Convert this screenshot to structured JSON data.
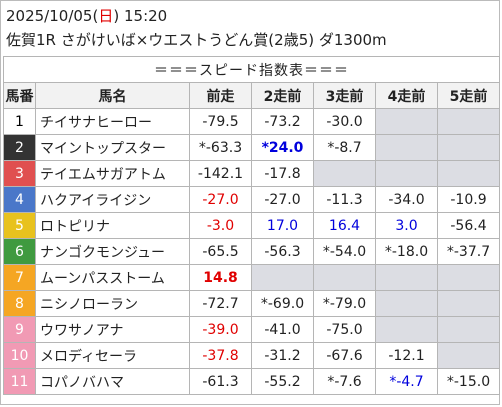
{
  "header": {
    "date": "2025/10/05",
    "dow_open": "(",
    "dow": "日",
    "dow_close": ")",
    "time": "15:20",
    "race_line": "佐賀1R さがけいば×ウエストうどん賞(2歳5) ダ1300m"
  },
  "table": {
    "title": "＝＝＝スピード指数表＝＝＝",
    "columns": [
      "馬番",
      "馬名",
      "前走",
      "2走前",
      "3走前",
      "4走前",
      "5走前"
    ],
    "rows": [
      {
        "num": "1",
        "num_bg": "#ffffff",
        "num_fg": "#000000",
        "name": "チイサナヒーロー",
        "vals": [
          {
            "t": "-79.5",
            "c": "normal"
          },
          {
            "t": "-73.2",
            "c": "normal"
          },
          {
            "t": "-30.0",
            "c": "normal"
          },
          {
            "t": "",
            "c": "empty"
          },
          {
            "t": "",
            "c": "empty"
          }
        ]
      },
      {
        "num": "2",
        "num_bg": "#333333",
        "num_fg": "#ffffff",
        "name": "マイントップスター",
        "vals": [
          {
            "t": "*-63.3",
            "c": "normal"
          },
          {
            "t": "*24.0",
            "c": "blue-bold"
          },
          {
            "t": "*-8.7",
            "c": "normal"
          },
          {
            "t": "",
            "c": "empty"
          },
          {
            "t": "",
            "c": "empty"
          }
        ]
      },
      {
        "num": "3",
        "num_bg": "#e05050",
        "num_fg": "#ffffff",
        "name": "テイエムサガアトム",
        "vals": [
          {
            "t": "-142.1",
            "c": "normal"
          },
          {
            "t": "-17.8",
            "c": "normal"
          },
          {
            "t": "",
            "c": "empty"
          },
          {
            "t": "",
            "c": "empty"
          },
          {
            "t": "",
            "c": "empty"
          }
        ]
      },
      {
        "num": "4",
        "num_bg": "#4a77c9",
        "num_fg": "#ffffff",
        "name": "ハクアイライジン",
        "vals": [
          {
            "t": "-27.0",
            "c": "red"
          },
          {
            "t": "-27.0",
            "c": "normal"
          },
          {
            "t": "-11.3",
            "c": "normal"
          },
          {
            "t": "-34.0",
            "c": "normal"
          },
          {
            "t": "-10.9",
            "c": "normal"
          }
        ]
      },
      {
        "num": "5",
        "num_bg": "#e8c21e",
        "num_fg": "#ffffff",
        "name": "ロトピリナ",
        "vals": [
          {
            "t": "-3.0",
            "c": "red"
          },
          {
            "t": "17.0",
            "c": "blue"
          },
          {
            "t": "16.4",
            "c": "blue"
          },
          {
            "t": "3.0",
            "c": "blue"
          },
          {
            "t": "-56.4",
            "c": "normal"
          }
        ]
      },
      {
        "num": "6",
        "num_bg": "#3f9a3f",
        "num_fg": "#ffffff",
        "name": "ナンゴクモンジュー",
        "vals": [
          {
            "t": "-65.5",
            "c": "normal"
          },
          {
            "t": "-56.3",
            "c": "normal"
          },
          {
            "t": "*-54.0",
            "c": "normal"
          },
          {
            "t": "*-18.0",
            "c": "normal"
          },
          {
            "t": "*-37.7",
            "c": "normal"
          }
        ]
      },
      {
        "num": "7",
        "num_bg": "#f5a623",
        "num_fg": "#ffffff",
        "name": "ムーンパスストーム",
        "vals": [
          {
            "t": "14.8",
            "c": "red-bold"
          },
          {
            "t": "",
            "c": "empty"
          },
          {
            "t": "",
            "c": "empty"
          },
          {
            "t": "",
            "c": "empty"
          },
          {
            "t": "",
            "c": "empty"
          }
        ]
      },
      {
        "num": "8",
        "num_bg": "#f5a623",
        "num_fg": "#ffffff",
        "name": "ニシノローラン",
        "vals": [
          {
            "t": "-72.7",
            "c": "normal"
          },
          {
            "t": "*-69.0",
            "c": "normal"
          },
          {
            "t": "*-79.0",
            "c": "normal"
          },
          {
            "t": "",
            "c": "empty"
          },
          {
            "t": "",
            "c": "empty"
          }
        ]
      },
      {
        "num": "9",
        "num_bg": "#f19ab4",
        "num_fg": "#ffffff",
        "name": "ウワサノアナ",
        "vals": [
          {
            "t": "-39.0",
            "c": "red"
          },
          {
            "t": "-41.0",
            "c": "normal"
          },
          {
            "t": "-75.0",
            "c": "normal"
          },
          {
            "t": "",
            "c": "empty"
          },
          {
            "t": "",
            "c": "empty"
          }
        ]
      },
      {
        "num": "10",
        "num_bg": "#f19ab4",
        "num_fg": "#ffffff",
        "name": "メロディセーラ",
        "vals": [
          {
            "t": "-37.8",
            "c": "red"
          },
          {
            "t": "-31.2",
            "c": "normal"
          },
          {
            "t": "-67.6",
            "c": "normal"
          },
          {
            "t": "-12.1",
            "c": "normal"
          },
          {
            "t": "",
            "c": "empty"
          }
        ]
      },
      {
        "num": "11",
        "num_bg": "#f19ab4",
        "num_fg": "#ffffff",
        "name": "コパノバハマ",
        "vals": [
          {
            "t": "-61.3",
            "c": "normal"
          },
          {
            "t": "-55.2",
            "c": "normal"
          },
          {
            "t": "*-7.6",
            "c": "normal"
          },
          {
            "t": "*-4.7",
            "c": "blue"
          },
          {
            "t": "*-15.0",
            "c": "normal"
          }
        ]
      }
    ]
  }
}
